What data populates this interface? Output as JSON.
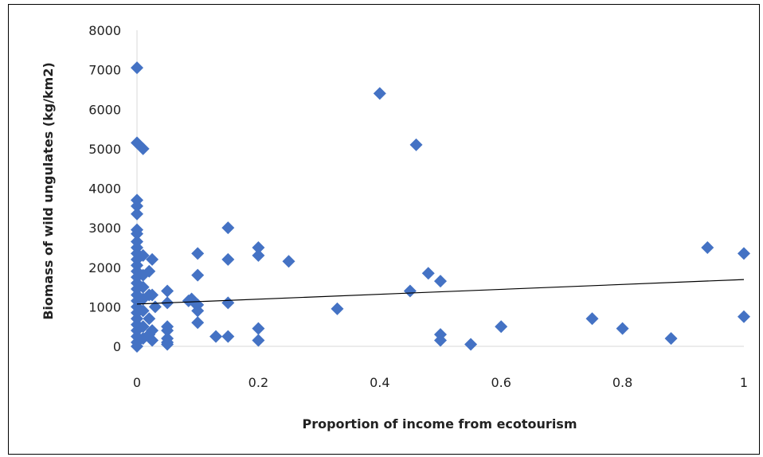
{
  "chart_data": {
    "type": "scatter",
    "title": "",
    "xlabel": "Proportion of income from ecotourism",
    "ylabel": "Biomass of wild ungulates (kg/km2)",
    "xlim": [
      0,
      1
    ],
    "ylim": [
      0,
      8000
    ],
    "x_ticks": [
      "0",
      "0.2",
      "0.4",
      "0.6",
      "0.8",
      "1"
    ],
    "y_ticks": [
      "0",
      "1000",
      "2000",
      "3000",
      "4000",
      "5000",
      "6000",
      "7000",
      "8000"
    ],
    "grid": false,
    "legend": "none",
    "marker_color": "#4472C4",
    "trendline": {
      "x": [
        0,
        1
      ],
      "y": [
        1070,
        1690
      ],
      "color": "#000000"
    },
    "points": [
      [
        0,
        7050
      ],
      [
        0,
        5150
      ],
      [
        0.01,
        5000
      ],
      [
        0,
        3700
      ],
      [
        0,
        3550
      ],
      [
        0,
        3350
      ],
      [
        0,
        2950
      ],
      [
        0,
        2850
      ],
      [
        0,
        2650
      ],
      [
        0,
        2500
      ],
      [
        0,
        2350
      ],
      [
        0,
        2200
      ],
      [
        0,
        2050
      ],
      [
        0,
        1900
      ],
      [
        0,
        1750
      ],
      [
        0,
        1600
      ],
      [
        0,
        1450
      ],
      [
        0,
        1300
      ],
      [
        0,
        1150
      ],
      [
        0,
        1000
      ],
      [
        0,
        850
      ],
      [
        0,
        700
      ],
      [
        0,
        550
      ],
      [
        0,
        400
      ],
      [
        0,
        250
      ],
      [
        0,
        100
      ],
      [
        0,
        0
      ],
      [
        0.01,
        2300
      ],
      [
        0.01,
        1800
      ],
      [
        0.01,
        1500
      ],
      [
        0.01,
        1200
      ],
      [
        0.01,
        900
      ],
      [
        0.01,
        500
      ],
      [
        0.01,
        200
      ],
      [
        0.02,
        1900
      ],
      [
        0.02,
        1300
      ],
      [
        0.02,
        700
      ],
      [
        0.02,
        300
      ],
      [
        0.025,
        2200
      ],
      [
        0.025,
        1300
      ],
      [
        0.025,
        400
      ],
      [
        0.025,
        150
      ],
      [
        0.03,
        1000
      ],
      [
        0.05,
        1400
      ],
      [
        0.05,
        1100
      ],
      [
        0.05,
        500
      ],
      [
        0.05,
        400
      ],
      [
        0.05,
        200
      ],
      [
        0.05,
        100
      ],
      [
        0.05,
        50
      ],
      [
        0.085,
        1150
      ],
      [
        0.09,
        1200
      ],
      [
        0.095,
        1100
      ],
      [
        0.1,
        2350
      ],
      [
        0.1,
        1800
      ],
      [
        0.1,
        1050
      ],
      [
        0.1,
        900
      ],
      [
        0.1,
        600
      ],
      [
        0.13,
        250
      ],
      [
        0.15,
        3000
      ],
      [
        0.15,
        2200
      ],
      [
        0.15,
        1100
      ],
      [
        0.15,
        250
      ],
      [
        0.2,
        2500
      ],
      [
        0.2,
        2300
      ],
      [
        0.2,
        450
      ],
      [
        0.2,
        150
      ],
      [
        0.25,
        2150
      ],
      [
        0.33,
        950
      ],
      [
        0.4,
        6400
      ],
      [
        0.45,
        1400
      ],
      [
        0.46,
        5100
      ],
      [
        0.48,
        1850
      ],
      [
        0.5,
        1650
      ],
      [
        0.5,
        300
      ],
      [
        0.5,
        150
      ],
      [
        0.55,
        50
      ],
      [
        0.6,
        500
      ],
      [
        0.75,
        700
      ],
      [
        0.8,
        450
      ],
      [
        0.88,
        200
      ],
      [
        0.94,
        2500
      ],
      [
        1,
        2350
      ],
      [
        1,
        750
      ]
    ]
  }
}
